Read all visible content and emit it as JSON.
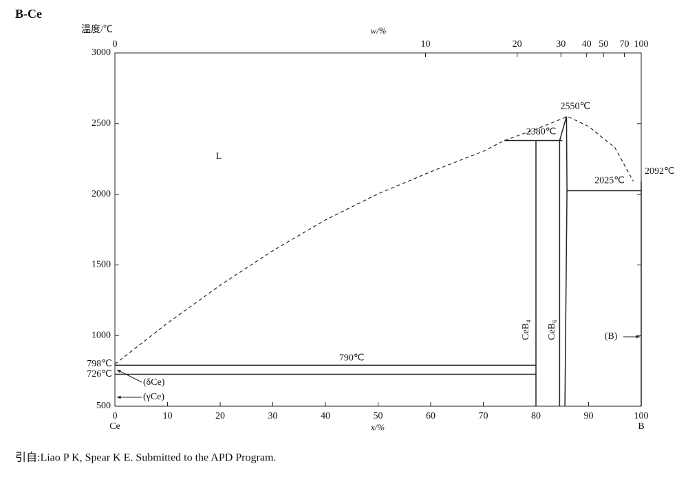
{
  "chart_data": {
    "type": "phase-diagram",
    "title": "B-Ce",
    "ylabel": "温度/℃",
    "xlabel": "x/%",
    "x2label": "w/%",
    "x_end_labels": [
      "Ce",
      "B"
    ],
    "xlim": [
      0,
      100
    ],
    "ylim": [
      500,
      3000
    ],
    "xticks": [
      0,
      10,
      20,
      30,
      40,
      50,
      60,
      70,
      80,
      90,
      100
    ],
    "yticks": [
      500,
      1000,
      1500,
      2000,
      2500,
      3000
    ],
    "x2ticks": [
      0,
      10,
      20,
      30,
      40,
      50,
      70,
      100
    ],
    "series": [
      {
        "style": "dashed",
        "x": [
          0,
          10,
          20,
          30,
          40,
          50,
          60,
          70,
          74,
          80,
          86,
          90,
          95,
          98.5
        ],
        "y": [
          798,
          1088,
          1356,
          1600,
          1818,
          2003,
          2159,
          2304,
          2380,
          2460,
          2550,
          2480,
          2330,
          2092
        ]
      },
      {
        "style": "solid",
        "x": [
          0,
          80
        ],
        "y": [
          790,
          790
        ]
      },
      {
        "style": "solid",
        "x": [
          0,
          80
        ],
        "y": [
          726,
          726
        ]
      },
      {
        "style": "solid",
        "x": [
          80,
          80
        ],
        "y": [
          500,
          2380
        ]
      },
      {
        "style": "solid",
        "x": [
          74,
          85
        ],
        "y": [
          2380,
          2380
        ]
      },
      {
        "style": "solid",
        "x": [
          84.5,
          84.5,
          85.8
        ],
        "y": [
          500,
          2380,
          2550
        ]
      },
      {
        "style": "solid",
        "x": [
          85.5,
          85.9,
          85.8
        ],
        "y": [
          500,
          2025,
          2550
        ]
      },
      {
        "style": "solid",
        "x": [
          85.9,
          100
        ],
        "y": [
          2025,
          2025
        ]
      },
      {
        "style": "solid",
        "x": [
          100,
          100
        ],
        "y": [
          500,
          2092
        ]
      }
    ],
    "annotations": [
      {
        "value": 798,
        "label": "798℃"
      },
      {
        "value": 726,
        "label": "726℃"
      },
      {
        "value": 790,
        "label": "790℃"
      },
      {
        "value": 2380,
        "label": "2380℃"
      },
      {
        "value": 2550,
        "label": "2550℃"
      },
      {
        "value": 2025,
        "label": "2025℃"
      },
      {
        "value": 2092,
        "label": "2092℃"
      }
    ],
    "phase_labels": [
      "L",
      "CeB₄",
      "CeB₆",
      "(B)",
      "(δCe)",
      "(γCe)"
    ],
    "source": "引自:Liao P K, Spear K E. Submitted to the APD Program."
  }
}
